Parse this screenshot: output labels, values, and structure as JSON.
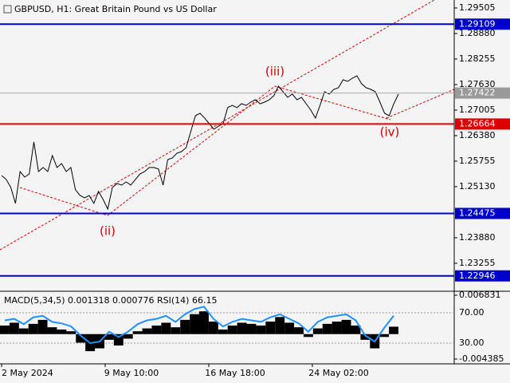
{
  "chart_data": [
    {
      "type": "line",
      "title": "GBPUSD, H1:  Great Britain Pound vs US Dollar",
      "color": "#000000",
      "values": [
        1.25403,
        1.25306,
        1.2511,
        1.2472,
        1.25501,
        1.25364,
        1.25442,
        1.26224,
        1.25501,
        1.25599,
        1.25501,
        1.25892,
        1.25599,
        1.25696,
        1.25501,
        1.25599,
        1.25052,
        1.24915,
        1.24857,
        1.24915,
        1.2472,
        1.25013,
        1.24817,
        1.24583,
        1.2511,
        1.25208,
        1.25169,
        1.25247,
        1.25169,
        1.25306,
        1.25442,
        1.25501,
        1.25599,
        1.25599,
        1.2556,
        1.25169,
        1.25794,
        1.25833,
        1.2595,
        1.25989,
        1.26087,
        1.26478,
        1.26868,
        1.26927,
        1.2681,
        1.26673,
        1.26536,
        1.26614,
        1.26673,
        1.27064,
        1.27122,
        1.27064,
        1.27161,
        1.27122,
        1.272,
        1.27259,
        1.27161,
        1.272,
        1.27259,
        1.27357,
        1.27591,
        1.27454,
        1.27317,
        1.27396,
        1.27259,
        1.27317,
        1.27161,
        1.27005,
        1.2681,
        1.27122,
        1.27454,
        1.27396,
        1.27513,
        1.27552,
        1.27747,
        1.27708,
        1.27786,
        1.27845,
        1.2765,
        1.27552,
        1.27513,
        1.27454,
        1.272,
        1.26927,
        1.26868,
        1.27161,
        1.27396
      ],
      "ylim": [
        1.2257,
        1.297
      ],
      "yticks": [
        1.29505,
        {
          "value": 1.2888,
          "label": "1.28880"
        },
        1.28255,
        {
          "value": 1.2763,
          "label": "1.27630"
        },
        1.27005,
        {
          "value": 1.2638,
          "label": "1.26380"
        },
        1.25755,
        {
          "value": 1.2513,
          "label": "1.25130"
        },
        {
          "value": 1.2388,
          "label": "1.23880"
        },
        1.23255
      ],
      "levels": [
        {
          "value": 1.29109,
          "color": "#0000cc"
        },
        {
          "value": 1.26664,
          "color": "#dd0000"
        },
        {
          "value": 1.24475,
          "color": "#0000cc"
        },
        {
          "value": 1.22946,
          "color": "#0000cc"
        }
      ],
      "current_price": 1.27422,
      "annotations": [
        "(ii)",
        "(iii)",
        "(iv)"
      ],
      "time_labels": [
        "2 May 2024",
        "9 May 10:00",
        "16 May 18:00",
        "24 May 02:00"
      ]
    },
    {
      "type": "macd_rsi",
      "title": "MACD(5,34,5) 0.001318 0.000776 RSI(14) 66.15",
      "values": [
        0.0015,
        0.002,
        0.001,
        0.0018,
        0.0025,
        0.0012,
        0.0008,
        0.0005,
        -0.0015,
        -0.003,
        -0.0025,
        -0.001,
        -0.002,
        -0.0008,
        0.0005,
        0.001,
        0.0015,
        0.002,
        0.0012,
        0.0025,
        0.0035,
        0.004,
        0.0022,
        0.0008,
        0.0015,
        0.002,
        0.0018,
        0.0015,
        0.0022,
        0.003,
        0.002,
        0.0012,
        -0.0005,
        0.001,
        0.0018,
        0.0022,
        0.0025,
        0.0015,
        -0.001,
        -0.0025,
        -0.0005,
        0.0013
      ],
      "rsi": [
        60,
        62,
        55,
        64,
        66,
        58,
        56,
        52,
        40,
        30,
        32,
        45,
        38,
        45,
        55,
        60,
        62,
        66,
        58,
        68,
        75,
        78,
        62,
        52,
        58,
        62,
        60,
        58,
        64,
        68,
        62,
        56,
        45,
        58,
        64,
        66,
        68,
        60,
        40,
        32,
        50,
        66
      ],
      "color": "#000000",
      "rsi_color": "#1e90ff",
      "ylim": [
        -0.004385,
        0.006831
      ],
      "yticks": [
        0.006831,
        -0.004385
      ],
      "y2lim": [
        8.9,
        93.2
      ],
      "y2ticks": [
        {
          "value": 70,
          "label": "70.00"
        },
        {
          "value": 30,
          "label": "30.00"
        }
      ]
    }
  ]
}
